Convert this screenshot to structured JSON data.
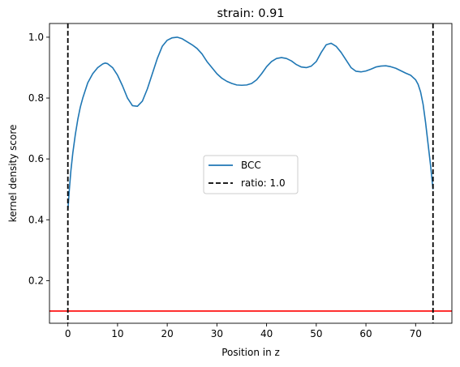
{
  "chart_data": {
    "type": "line",
    "title": "strain: 0.91",
    "xlabel": "Position in z",
    "ylabel": "kernel density score",
    "xlim": [
      -3.7,
      77.3
    ],
    "ylim": [
      0.06,
      1.045
    ],
    "xticks": [
      0,
      10,
      20,
      30,
      40,
      50,
      60,
      70
    ],
    "yticks": [
      0.2,
      0.4,
      0.6,
      0.8,
      1.0
    ],
    "ytick_labels": [
      "0.2",
      "0.4",
      "0.6",
      "0.8",
      "1.0"
    ],
    "grid": false,
    "legend_position": "center",
    "series": [
      {
        "name": "BCC",
        "color": "#1f77b4",
        "style": "solid",
        "x": [
          0.0,
          0.3,
          0.6,
          1.0,
          1.5,
          2.0,
          2.5,
          3.0,
          4.0,
          5.0,
          6.0,
          7.0,
          7.5,
          8.0,
          9.0,
          10.0,
          11.0,
          12.0,
          13.0,
          14.0,
          15.0,
          16.0,
          17.0,
          18.0,
          19.0,
          20.0,
          21.0,
          22.0,
          23.0,
          24.0,
          25.0,
          26.0,
          27.0,
          28.0,
          29.0,
          30.0,
          31.0,
          32.0,
          33.0,
          34.0,
          35.0,
          36.0,
          37.0,
          38.0,
          39.0,
          40.0,
          41.0,
          42.0,
          43.0,
          44.0,
          45.0,
          46.0,
          47.0,
          48.0,
          49.0,
          50.0,
          51.0,
          52.0,
          53.0,
          54.0,
          55.0,
          56.0,
          57.0,
          58.0,
          59.0,
          60.0,
          61.0,
          62.0,
          63.0,
          64.0,
          65.0,
          66.0,
          67.0,
          68.0,
          69.0,
          70.0,
          70.5,
          71.0,
          71.5,
          72.0,
          72.5,
          73.0,
          73.5
        ],
        "y": [
          0.43,
          0.5,
          0.56,
          0.62,
          0.68,
          0.73,
          0.77,
          0.8,
          0.85,
          0.88,
          0.9,
          0.912,
          0.915,
          0.913,
          0.9,
          0.875,
          0.84,
          0.8,
          0.775,
          0.773,
          0.79,
          0.83,
          0.88,
          0.93,
          0.97,
          0.99,
          0.998,
          1.0,
          0.995,
          0.985,
          0.975,
          0.963,
          0.945,
          0.92,
          0.9,
          0.88,
          0.865,
          0.855,
          0.848,
          0.843,
          0.842,
          0.843,
          0.848,
          0.86,
          0.88,
          0.903,
          0.92,
          0.93,
          0.933,
          0.93,
          0.922,
          0.91,
          0.902,
          0.9,
          0.905,
          0.92,
          0.95,
          0.975,
          0.98,
          0.97,
          0.95,
          0.925,
          0.9,
          0.888,
          0.886,
          0.889,
          0.895,
          0.902,
          0.905,
          0.906,
          0.903,
          0.898,
          0.89,
          0.882,
          0.875,
          0.86,
          0.845,
          0.82,
          0.78,
          0.72,
          0.65,
          0.58,
          0.5
        ]
      },
      {
        "name": "ratio: 1.0",
        "color": "#000000",
        "style": "dashed",
        "vertical_lines_x": [
          0.0,
          73.5
        ]
      }
    ],
    "horizontal_line": {
      "y": 0.1,
      "color": "#ff0000"
    }
  }
}
